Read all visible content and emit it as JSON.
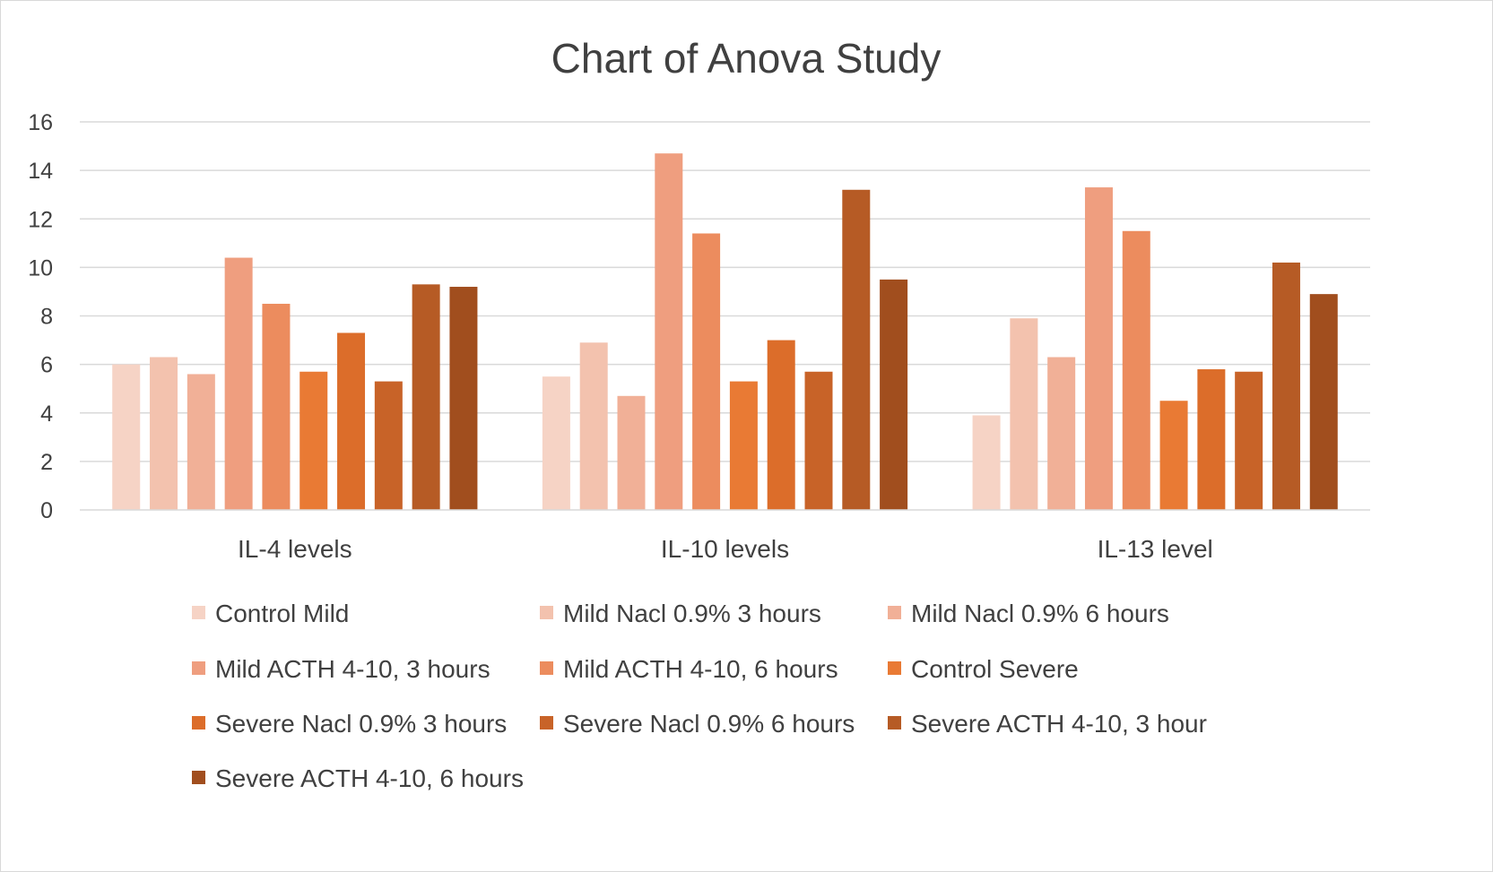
{
  "chart_data": {
    "type": "bar",
    "title": "Chart of Anova Study",
    "categories": [
      "IL-4 levels",
      "IL-10 levels",
      "IL-13 level"
    ],
    "ylim": [
      0,
      16
    ],
    "yticks": [
      0,
      2,
      4,
      6,
      8,
      10,
      12,
      14,
      16
    ],
    "grid": true,
    "legend_position": "bottom",
    "series": [
      {
        "name": "Control Mild",
        "color": "#f6d3c5",
        "values": [
          6.0,
          5.5,
          3.9
        ]
      },
      {
        "name": "Mild Nacl 0.9% 3 hours",
        "color": "#f3c2ae",
        "values": [
          6.3,
          6.9,
          7.9
        ]
      },
      {
        "name": "Mild Nacl 0.9% 6 hours",
        "color": "#f1b097",
        "values": [
          5.6,
          4.7,
          6.3
        ]
      },
      {
        "name": "Mild ACTH 4-10, 3 hours",
        "color": "#ef9e7f",
        "values": [
          10.4,
          14.7,
          13.3
        ]
      },
      {
        "name": "Mild ACTH 4-10, 6 hours",
        "color": "#ec8c5e",
        "values": [
          8.5,
          11.4,
          11.5
        ]
      },
      {
        "name": "Control Severe",
        "color": "#e97a34",
        "values": [
          5.7,
          5.3,
          4.5
        ]
      },
      {
        "name": "Severe Nacl 0.9% 3 hours",
        "color": "#dc6d2a",
        "values": [
          7.3,
          7.0,
          5.8
        ]
      },
      {
        "name": "Severe Nacl 0.9% 6 hours",
        "color": "#c86328",
        "values": [
          5.3,
          5.7,
          5.7
        ]
      },
      {
        "name": "Severe ACTH 4-10, 3 hour",
        "color": "#b65b25",
        "values": [
          9.3,
          13.2,
          10.2
        ]
      },
      {
        "name": "Severe ACTH 4-10, 6 hours",
        "color": "#a14e1e",
        "values": [
          9.2,
          9.5,
          8.9
        ]
      }
    ]
  }
}
